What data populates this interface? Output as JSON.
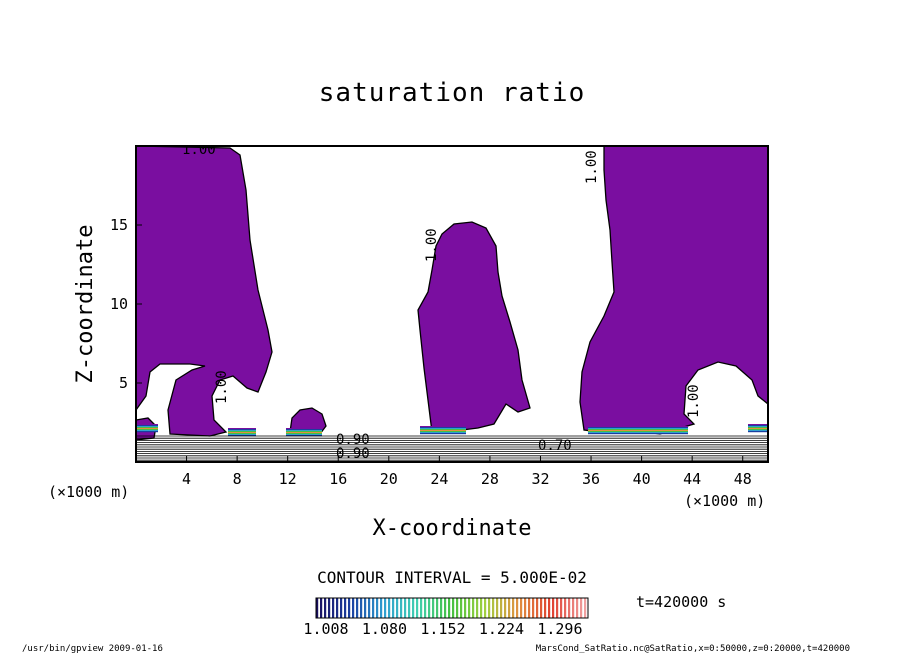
{
  "chart_data": {
    "type": "contour",
    "title": "saturation ratio",
    "xlabel": "X-coordinate",
    "ylabel": "Z-coordinate",
    "x_unit": "(×1000 m)",
    "y_unit": "(×1000 m)",
    "xlim": [
      0,
      50
    ],
    "ylim": [
      0,
      20
    ],
    "x_ticks": [
      4,
      8,
      12,
      16,
      20,
      24,
      28,
      32,
      36,
      40,
      44,
      48
    ],
    "y_ticks": [
      5,
      10,
      15
    ],
    "fill_color": "#7a0ea0",
    "contour_interval_label": "CONTOUR INTERVAL = 5.000E-02",
    "contour_labels": [
      "1.00",
      "1.00",
      "1.00",
      "1.00",
      "1.00",
      "0.90",
      "0.90",
      "0.70"
    ],
    "colorbar": {
      "ticks": [
        "1.008",
        "1.080",
        "1.152",
        "1.224",
        "1.296"
      ],
      "range": [
        1.008,
        1.296
      ],
      "colors": [
        "#1a1060",
        "#1a3fa0",
        "#2f9fd0",
        "#40d0b0",
        "#45c040",
        "#a0d040",
        "#e09040",
        "#e04030",
        "#f0a0a0"
      ]
    },
    "time_label": "t=420000 s"
  },
  "footer": {
    "left": "/usr/bin/gpview  2009-01-16",
    "right": "MarsCond_SatRatio.nc@SatRatio,x=0:50000,z=0:20000,t=420000"
  }
}
